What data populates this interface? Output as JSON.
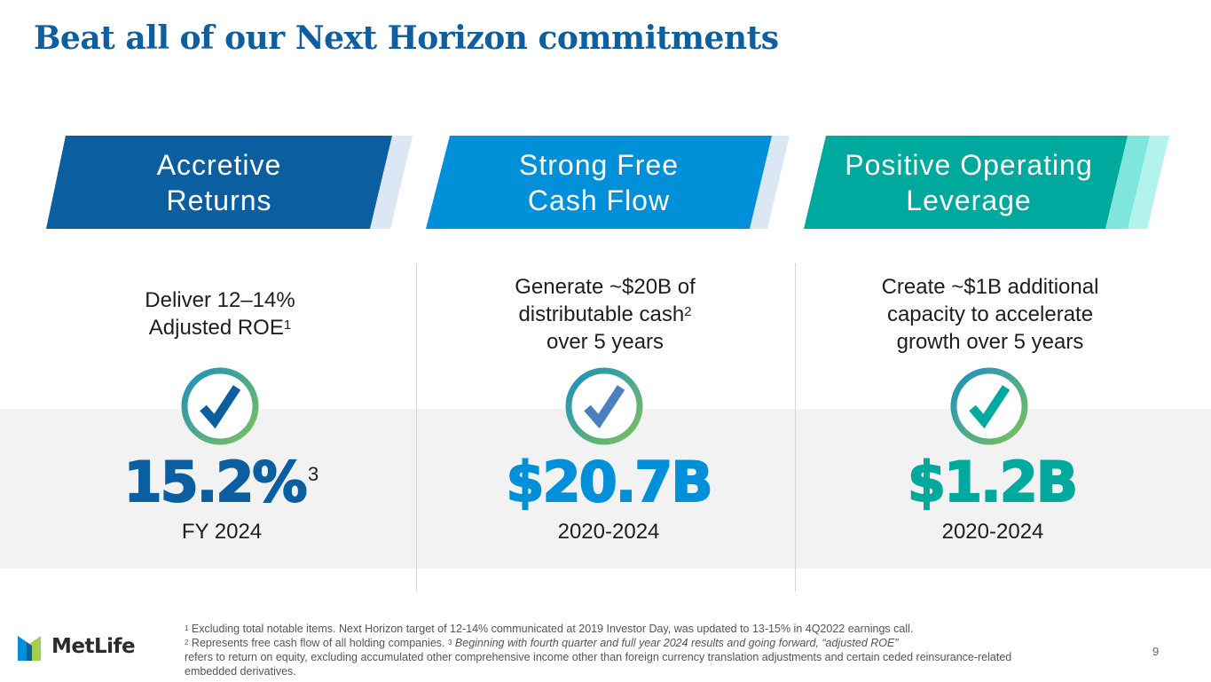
{
  "title": "Beat all of our Next Horizon commitments",
  "pillars": [
    {
      "banner_line1": "Accretive",
      "banner_line2": "Returns",
      "commitment_line1": "Deliver 12–14%",
      "commitment_line2": "Adjusted ROE",
      "commitment_sup": "1",
      "result": "15.2%",
      "result_sup": "3",
      "period": "FY 2024",
      "color": "#0b5fa0"
    },
    {
      "banner_line1": "Strong Free",
      "banner_line2": "Cash Flow",
      "commitment_line1": "Generate ~$20B of",
      "commitment_line2": "distributable cash",
      "commitment_sup": "2",
      "commitment_line3": "over 5 years",
      "result": "$20.7B",
      "period": "2020-2024",
      "color": "#0090da"
    },
    {
      "banner_line1": "Positive Operating",
      "banner_line2": "Leverage",
      "commitment_line1": "Create ~$1B additional",
      "commitment_line2": "capacity to accelerate",
      "commitment_line3": "growth over 5 years",
      "result": "$1.2B",
      "period": "2020-2024",
      "color": "#00a99d"
    }
  ],
  "logo": {
    "text": "MetLife",
    "icon": "metlife-logo-icon"
  },
  "footnotes": {
    "n1_sup": "1",
    "n1": " Excluding total notable items.  Next Horizon target of 12-14% communicated at 2019 Investor Day, was updated to 13-15% in 4Q2022 earnings call.",
    "n2_sup": "2",
    "n2": " Represents free cash flow of all holding companies. ",
    "n3_sup": "3",
    "n3_italic": " Beginning with fourth quarter and full year 2024 results and going forward, “adjusted ROE”",
    "n3_rest": "refers to return on equity, excluding accumulated other comprehensive income other than foreign currency translation adjustments and certain ceded reinsurance-related embedded derivatives."
  },
  "page_number": "9",
  "icons": [
    "check-circle-icon"
  ]
}
